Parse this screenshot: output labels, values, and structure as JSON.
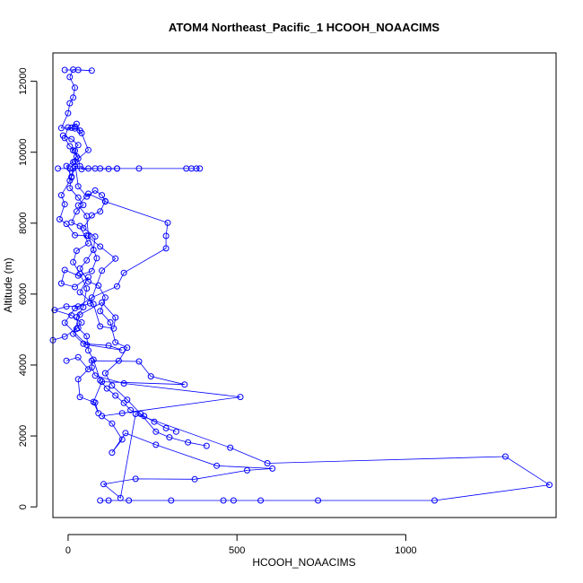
{
  "chart_data": {
    "type": "line",
    "title": "ATOM4 Northeast_Pacific_1 HCOOH_NOAACIMS",
    "xlabel": "HCOOH_NOAACIMS",
    "ylabel": "Altitude (m)",
    "xlim": [
      -45,
      1445
    ],
    "ylim": [
      -300,
      12800
    ],
    "x_ticks": [
      0,
      500,
      1000
    ],
    "x_tick_labels": [
      "0",
      "500",
      "1000"
    ],
    "y_ticks": [
      0,
      2000,
      4000,
      6000,
      8000,
      10000,
      12000
    ],
    "y_tick_labels": [
      "0",
      "2000",
      "4000",
      "6000",
      "8000",
      "10000",
      "12000"
    ],
    "grid": false,
    "marker": "open circle",
    "color": "#0000ff",
    "series": [
      {
        "values": [
          [
            95,
            180
          ],
          [
            120,
            180
          ],
          [
            180,
            180
          ],
          [
            305,
            180
          ],
          [
            460,
            180
          ],
          [
            490,
            180
          ],
          [
            570,
            180
          ],
          [
            740,
            180
          ],
          [
            1085,
            180
          ],
          [
            1425,
            620
          ],
          [
            1295,
            1420
          ],
          [
            590,
            1230
          ],
          [
            480,
            1670
          ],
          [
            200,
            2620
          ],
          [
            155,
            250
          ],
          [
            105,
            640
          ],
          [
            200,
            790
          ],
          [
            375,
            780
          ],
          [
            530,
            1030
          ],
          [
            605,
            1080
          ],
          [
            440,
            1160
          ],
          [
            260,
            1750
          ],
          [
            170,
            2080
          ],
          [
            130,
            1530
          ],
          [
            160,
            1900
          ],
          [
            130,
            2350
          ],
          [
            100,
            2560
          ],
          [
            160,
            2640
          ],
          [
            510,
            3100
          ],
          [
            165,
            3480
          ],
          [
            80,
            3700
          ],
          [
            70,
            3930
          ],
          [
            70,
            4120
          ],
          [
            210,
            4100
          ],
          [
            245,
            3680
          ],
          [
            345,
            3450
          ],
          [
            100,
            3530
          ],
          [
            75,
            2960
          ],
          [
            90,
            2640
          ],
          [
            80,
            2940
          ],
          [
            35,
            3100
          ],
          [
            30,
            3600
          ],
          [
            60,
            3880
          ],
          [
            30,
            4220
          ],
          [
            -5,
            4120
          ]
        ]
      },
      {
        "values": [
          [
            -45,
            4700
          ],
          [
            -10,
            4800
          ],
          [
            25,
            5020
          ],
          [
            40,
            5200
          ],
          [
            10,
            5400
          ],
          [
            -40,
            5550
          ],
          [
            -5,
            5650
          ],
          [
            30,
            5650
          ],
          [
            70,
            5900
          ],
          [
            145,
            6220
          ],
          [
            165,
            6600
          ],
          [
            290,
            7290
          ],
          [
            290,
            7640
          ],
          [
            295,
            8010
          ],
          [
            110,
            8610
          ],
          [
            60,
            8830
          ],
          [
            30,
            8500
          ],
          [
            55,
            8200
          ],
          [
            60,
            7640
          ],
          [
            85,
            7010
          ],
          [
            70,
            6650
          ],
          [
            30,
            6520
          ],
          [
            -10,
            6680
          ],
          [
            -20,
            6300
          ],
          [
            20,
            6200
          ],
          [
            60,
            6480
          ],
          [
            35,
            6050
          ],
          [
            75,
            5720
          ],
          [
            95,
            5090
          ],
          [
            135,
            5030
          ],
          [
            140,
            5340
          ],
          [
            100,
            5760
          ],
          [
            35,
            5420
          ],
          [
            15,
            4880
          ],
          [
            45,
            4600
          ],
          [
            120,
            4550
          ],
          [
            160,
            4420
          ],
          [
            55,
            4570
          ],
          [
            -10,
            5190
          ],
          [
            20,
            5600
          ],
          [
            65,
            5740
          ],
          [
            100,
            6660
          ],
          [
            140,
            7000
          ],
          [
            95,
            7340
          ],
          [
            55,
            7650
          ],
          [
            20,
            7660
          ],
          [
            -5,
            7980
          ],
          [
            -25,
            8110
          ],
          [
            -10,
            8530
          ],
          [
            -20,
            8790
          ],
          [
            5,
            9200
          ],
          [
            5,
            9540
          ],
          [
            -30,
            9540
          ]
        ]
      },
      {
        "values": [
          [
            40,
            9520
          ],
          [
            80,
            9540
          ],
          [
            120,
            9530
          ],
          [
            145,
            9540
          ],
          [
            210,
            9540
          ],
          [
            350,
            9540
          ],
          [
            365,
            9540
          ],
          [
            380,
            9540
          ],
          [
            390,
            9540
          ],
          [
            145,
            9540
          ],
          [
            95,
            9540
          ],
          [
            60,
            9540
          ],
          [
            15,
            9540
          ],
          [
            10,
            9290
          ],
          [
            20,
            9600
          ],
          [
            35,
            9610
          ],
          [
            30,
            9820
          ],
          [
            20,
            10040
          ],
          [
            5,
            10170
          ],
          [
            -10,
            10400
          ],
          [
            0,
            10700
          ],
          [
            10,
            10690
          ],
          [
            25,
            10800
          ],
          [
            35,
            10610
          ],
          [
            20,
            10670
          ],
          [
            -20,
            10680
          ],
          [
            0,
            11100
          ],
          [
            5,
            11380
          ],
          [
            15,
            11540
          ],
          [
            20,
            11820
          ],
          [
            5,
            12120
          ],
          [
            15,
            12330
          ],
          [
            70,
            12300
          ],
          [
            30,
            12320
          ],
          [
            -10,
            12320
          ]
        ]
      },
      {
        "values": [
          [
            -15,
            10470
          ],
          [
            10,
            10370
          ],
          [
            30,
            10200
          ],
          [
            15,
            10050
          ],
          [
            25,
            9880
          ],
          [
            15,
            9720
          ],
          [
            -5,
            9610
          ],
          [
            10,
            9310
          ],
          [
            5,
            8990
          ],
          [
            30,
            8720
          ],
          [
            45,
            8510
          ],
          [
            25,
            8330
          ],
          [
            10,
            8020
          ],
          [
            35,
            7920
          ],
          [
            60,
            7430
          ],
          [
            25,
            7220
          ],
          [
            15,
            6900
          ],
          [
            35,
            6570
          ],
          [
            55,
            6160
          ],
          [
            45,
            5630
          ],
          [
            25,
            5350
          ],
          [
            30,
            5040
          ],
          [
            55,
            4810
          ],
          [
            60,
            4410
          ],
          [
            75,
            4150
          ],
          [
            95,
            3570
          ],
          [
            115,
            3340
          ],
          [
            140,
            3140
          ],
          [
            165,
            2930
          ],
          [
            185,
            2730
          ],
          [
            225,
            2560
          ],
          [
            255,
            2400
          ],
          [
            290,
            2220
          ],
          [
            320,
            2120
          ]
        ]
      },
      {
        "values": [
          [
            20,
            10720
          ],
          [
            40,
            10540
          ],
          [
            60,
            10060
          ],
          [
            20,
            9740
          ],
          [
            30,
            9040
          ],
          [
            55,
            8750
          ],
          [
            80,
            8920
          ],
          [
            100,
            8790
          ],
          [
            110,
            8620
          ],
          [
            95,
            8330
          ],
          [
            70,
            8220
          ],
          [
            45,
            7860
          ],
          [
            80,
            7620
          ],
          [
            75,
            7250
          ],
          [
            55,
            6950
          ],
          [
            35,
            6720
          ],
          [
            60,
            6350
          ],
          [
            90,
            6240
          ],
          [
            110,
            5900
          ],
          [
            95,
            5520
          ],
          [
            125,
            5200
          ],
          [
            140,
            4640
          ],
          [
            175,
            4490
          ],
          [
            150,
            4120
          ],
          [
            110,
            3770
          ],
          [
            130,
            3420
          ],
          [
            175,
            3020
          ],
          [
            215,
            2620
          ],
          [
            260,
            2120
          ],
          [
            300,
            1960
          ],
          [
            355,
            1820
          ],
          [
            410,
            1720
          ]
        ]
      }
    ]
  }
}
